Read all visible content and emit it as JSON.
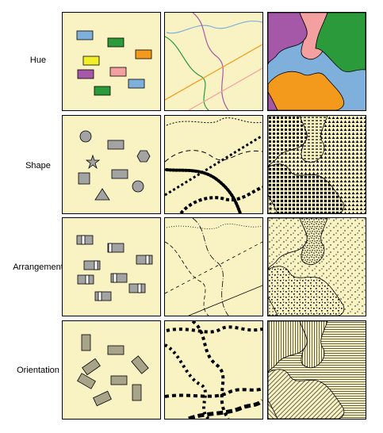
{
  "rows": [
    {
      "label": "Hue"
    },
    {
      "label": "Shape"
    },
    {
      "label": "Arrangement"
    },
    {
      "label": "Orientation"
    }
  ],
  "colors": {
    "background": "#f9f3c4",
    "blue": "#7fb0dc",
    "green": "#2b9a3a",
    "orange": "#f39a1c",
    "yellow": "#f2ee2a",
    "purple": "#a658a8",
    "pink": "#f5a0a0",
    "gray": "#a3a3a3",
    "olive-gray": "#a8a48a",
    "black": "#000000"
  }
}
